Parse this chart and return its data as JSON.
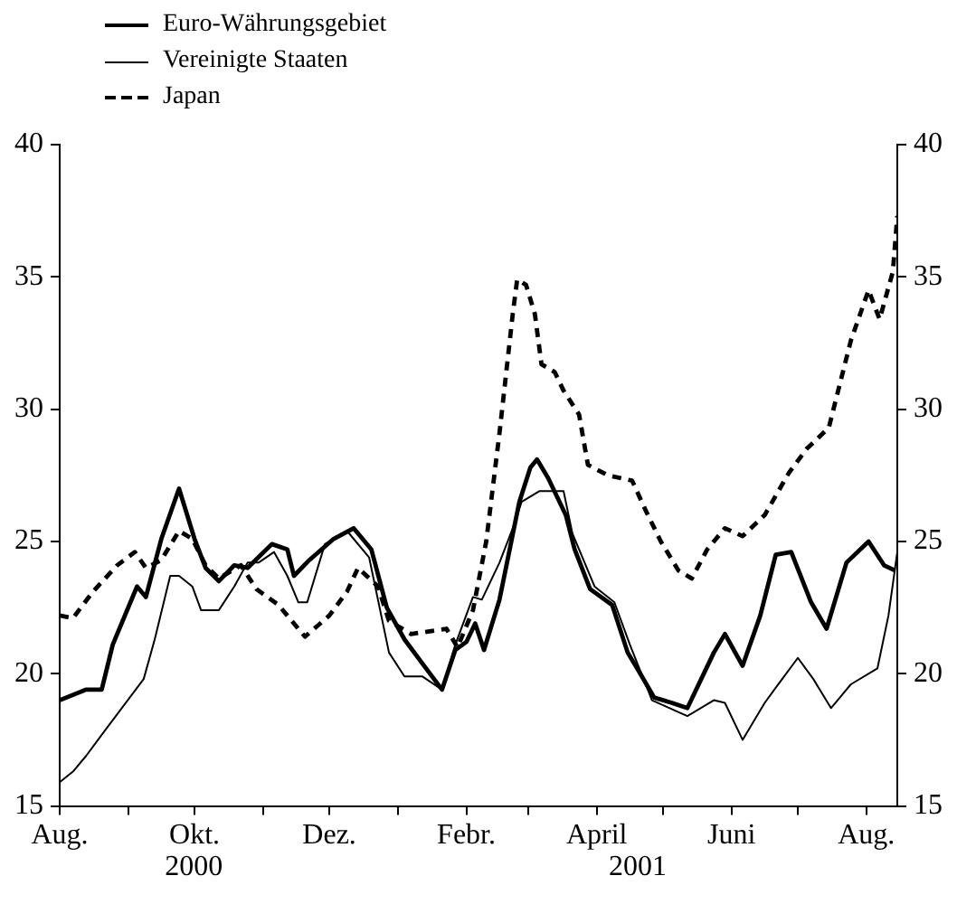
{
  "chart_data": {
    "type": "line",
    "xlim": [
      "2000-08-01",
      "2001-08-15"
    ],
    "xticks": [
      {
        "value": "2000-08-01",
        "label": "Aug."
      },
      {
        "value": "2000-09-01",
        "label": null
      },
      {
        "value": "2000-10-01",
        "label": "Okt."
      },
      {
        "value": "2000-11-01",
        "label": null
      },
      {
        "value": "2000-12-01",
        "label": "Dez."
      },
      {
        "value": "2001-01-01",
        "label": null
      },
      {
        "value": "2001-02-01",
        "label": "Febr."
      },
      {
        "value": "2001-03-01",
        "label": null
      },
      {
        "value": "2001-04-01",
        "label": "April"
      },
      {
        "value": "2001-05-01",
        "label": null
      },
      {
        "value": "2001-06-01",
        "label": "Juni"
      },
      {
        "value": "2001-07-01",
        "label": null
      },
      {
        "value": "2001-08-01",
        "label": "Aug."
      }
    ],
    "ylim": [
      15,
      40
    ],
    "yticks": [
      15,
      20,
      25,
      30,
      35,
      40
    ],
    "y2lim": [
      15,
      40
    ],
    "y2ticks": [
      15,
      20,
      25,
      30,
      35,
      40
    ],
    "grid": false,
    "legend": "top left",
    "marker": "none",
    "annotations": [
      "2000",
      "2001"
    ],
    "series": [
      {
        "name": "Euro-Währungsgebiet",
        "color": "#000000",
        "line_style": "solid",
        "x": [
          "2000-08-01",
          "2000-08-13",
          "2000-08-20",
          "2000-08-25",
          "2000-09-02",
          "2000-09-05",
          "2000-09-09",
          "2000-09-16",
          "2000-09-24",
          "2000-10-01",
          "2000-10-06",
          "2000-10-12",
          "2000-10-19",
          "2000-10-25",
          "2000-11-05",
          "2000-11-12",
          "2000-11-15",
          "2000-11-22",
          "2000-12-03",
          "2000-12-12",
          "2000-12-20",
          "2000-12-27",
          "2001-01-04",
          "2001-01-12",
          "2001-01-21",
          "2001-01-27",
          "2001-02-01",
          "2001-02-05",
          "2001-02-09",
          "2001-02-16",
          "2001-02-25",
          "2001-03-02",
          "2001-03-05",
          "2001-03-10",
          "2001-03-18",
          "2001-03-22",
          "2001-03-29",
          "2001-04-08",
          "2001-04-15",
          "2001-04-20",
          "2001-04-27",
          "2001-05-05",
          "2001-05-12",
          "2001-05-24",
          "2001-05-29",
          "2001-06-06",
          "2001-06-14",
          "2001-06-21",
          "2001-06-28",
          "2001-07-07",
          "2001-07-14",
          "2001-07-23",
          "2001-08-02",
          "2001-08-09",
          "2001-08-14"
        ],
        "values": [
          19.0,
          19.4,
          19.4,
          21.1,
          22.7,
          23.3,
          22.9,
          25.1,
          27.0,
          25.1,
          24.0,
          23.5,
          24.1,
          24.0,
          24.9,
          24.7,
          23.7,
          24.3,
          25.1,
          25.5,
          24.7,
          22.5,
          21.3,
          20.4,
          19.4,
          20.9,
          21.2,
          21.9,
          20.9,
          22.8,
          26.5,
          27.8,
          28.1,
          27.4,
          26.0,
          24.7,
          23.2,
          22.6,
          20.8,
          20.1,
          19.1,
          18.9,
          18.7,
          20.8,
          21.5,
          20.3,
          22.2,
          24.5,
          24.6,
          22.7,
          21.7,
          24.2,
          25.0,
          24.1,
          23.9
        ]
      },
      {
        "name": "Vereinigte Staaten",
        "color": "#000000",
        "line_style": "solid",
        "x": [
          "2000-08-01",
          "2000-08-07",
          "2000-08-13",
          "2000-08-21",
          "2000-08-30",
          "2000-09-08",
          "2000-09-13",
          "2000-09-20",
          "2000-09-24",
          "2000-09-30",
          "2000-10-04",
          "2000-10-12",
          "2000-10-19",
          "2000-10-25",
          "2000-10-30",
          "2000-11-06",
          "2000-11-12",
          "2000-11-17",
          "2000-11-21",
          "2000-11-29",
          "2000-12-09",
          "2000-12-19",
          "2000-12-28",
          "2001-01-04",
          "2001-01-12",
          "2001-01-21",
          "2001-01-27",
          "2001-02-04",
          "2001-02-08",
          "2001-02-16",
          "2001-02-22",
          "2001-02-26",
          "2001-03-06",
          "2001-03-17",
          "2001-03-21",
          "2001-03-31",
          "2001-04-09",
          "2001-04-16",
          "2001-04-26",
          "2001-05-12",
          "2001-05-24",
          "2001-05-29",
          "2001-06-06",
          "2001-06-16",
          "2001-06-23",
          "2001-07-01",
          "2001-07-08",
          "2001-07-16",
          "2001-07-25",
          "2001-08-06",
          "2001-08-11",
          "2001-08-15"
        ],
        "values": [
          15.9,
          16.3,
          16.9,
          17.8,
          18.8,
          19.8,
          21.3,
          23.7,
          23.7,
          23.3,
          22.4,
          22.4,
          23.3,
          24.2,
          24.2,
          24.6,
          23.7,
          22.7,
          22.7,
          24.9,
          25.4,
          24.4,
          20.8,
          19.9,
          19.9,
          19.4,
          21.1,
          22.9,
          22.8,
          24.2,
          25.5,
          26.5,
          26.9,
          26.9,
          25.3,
          23.3,
          22.7,
          21.1,
          19.0,
          18.4,
          19.0,
          18.9,
          17.5,
          18.9,
          19.7,
          20.6,
          19.8,
          18.7,
          19.6,
          20.2,
          22.2,
          24.6
        ]
      },
      {
        "name": "Japan",
        "color": "#000000",
        "line_style": "dashed",
        "x": [
          "2000-08-01",
          "2000-08-07",
          "2000-08-16",
          "2000-08-27",
          "2000-09-04",
          "2000-09-09",
          "2000-09-16",
          "2000-09-24",
          "2000-09-30",
          "2000-10-06",
          "2000-10-12",
          "2000-10-22",
          "2000-10-29",
          "2000-11-08",
          "2000-11-20",
          "2000-12-01",
          "2000-12-09",
          "2000-12-14",
          "2000-12-23",
          "2000-12-28",
          "2001-01-07",
          "2001-01-23",
          "2001-01-28",
          "2001-02-04",
          "2001-02-10",
          "2001-02-16",
          "2001-02-22",
          "2001-02-24",
          "2001-02-28",
          "2001-03-04",
          "2001-03-07",
          "2001-03-13",
          "2001-03-17",
          "2001-03-24",
          "2001-03-28",
          "2001-04-06",
          "2001-04-17",
          "2001-04-23",
          "2001-04-30",
          "2001-05-08",
          "2001-05-14",
          "2001-05-21",
          "2001-05-29",
          "2001-06-06",
          "2001-06-16",
          "2001-06-27",
          "2001-07-05",
          "2001-07-15",
          "2001-07-25",
          "2001-08-02",
          "2001-08-07",
          "2001-08-13",
          "2001-08-15"
        ],
        "values": [
          22.2,
          22.1,
          23.1,
          24.1,
          24.6,
          24.0,
          24.3,
          25.4,
          25.1,
          24.1,
          23.6,
          24.1,
          23.2,
          22.6,
          21.4,
          22.2,
          23.1,
          24.0,
          23.3,
          22.0,
          21.5,
          21.7,
          21.0,
          22.4,
          25.0,
          29.1,
          33.6,
          34.9,
          34.7,
          33.6,
          31.7,
          31.4,
          30.7,
          29.8,
          27.9,
          27.5,
          27.3,
          26.2,
          25.0,
          23.9,
          23.6,
          24.7,
          25.5,
          25.2,
          26.0,
          27.6,
          28.5,
          29.3,
          32.6,
          34.5,
          33.4,
          35.2,
          37.3
        ]
      }
    ]
  }
}
